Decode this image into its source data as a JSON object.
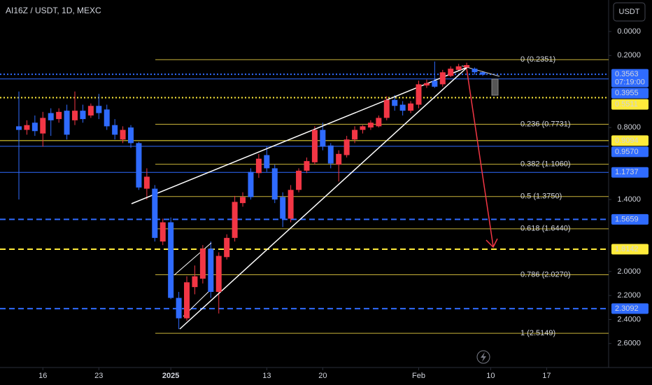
{
  "chart_data": {
    "type": "candlestick",
    "title": "AI16Z / USDT, 1D, MEXC",
    "currency": "USDT",
    "inverted": true,
    "ylim": [
      -0.2624,
      2.8
    ],
    "yticks": [
      {
        "value": 0,
        "label": "0.0000"
      },
      {
        "value": 0.2,
        "label": "0.2000"
      },
      {
        "value": 0.8,
        "label": "0.8000"
      },
      {
        "value": 1.4,
        "label": "1.4000"
      },
      {
        "value": 2.0,
        "label": "2.0000"
      },
      {
        "value": 2.2,
        "label": "2.2000"
      },
      {
        "value": 2.4,
        "label": "2.4000"
      },
      {
        "value": 2.6,
        "label": "2.6000"
      }
    ],
    "xticks": [
      {
        "value": 3,
        "label": "16"
      },
      {
        "value": 10,
        "label": "23"
      },
      {
        "value": 19,
        "label": "2025"
      },
      {
        "value": 31,
        "label": "13"
      },
      {
        "value": 38,
        "label": "20"
      },
      {
        "value": 50,
        "label": "Feb"
      },
      {
        "value": 59,
        "label": "10"
      },
      {
        "value": 66,
        "label": "17"
      }
    ],
    "up_color": "#2f6bff",
    "down_color": "#f23645",
    "candles": {
      "open": [
        0.79,
        0.82,
        0.76,
        0.85,
        0.68,
        0.73,
        0.66,
        0.74,
        0.66,
        0.7,
        0.62,
        0.65,
        0.78,
        0.9,
        0.8,
        0.93,
        1.31,
        1.31,
        1.75,
        1.59,
        2.22,
        2.39,
        2.13,
        2.06,
        1.81,
        2.17,
        1.88,
        1.72,
        1.43,
        1.17,
        1.18,
        1.03,
        1.14,
        1.38,
        1.56,
        1.32,
        1.16,
        1.09,
        0.82,
        0.95,
        1.11,
        1.03,
        0.9,
        0.82,
        0.8,
        0.79,
        0.72,
        0.57,
        0.61,
        0.66,
        0.61,
        0.45,
        0.41,
        0.44,
        0.37,
        0.32,
        0.3,
        0.31,
        0.34
      ],
      "high": [
        1.4,
        0.86,
        0.87,
        0.96,
        0.87,
        0.76,
        0.9,
        0.78,
        0.76,
        0.72,
        0.73,
        0.82,
        0.9,
        0.93,
        0.97,
        1.32,
        1.4,
        1.75,
        1.78,
        2.23,
        2.48,
        2.41,
        2.19,
        2.1,
        2.22,
        2.35,
        1.9,
        1.75,
        1.46,
        1.4,
        1.22,
        1.17,
        1.43,
        1.63,
        1.59,
        1.34,
        1.18,
        1.11,
        0.99,
        1.14,
        1.25,
        1.05,
        0.93,
        0.85,
        0.82,
        0.8,
        0.74,
        0.66,
        0.7,
        0.68,
        0.64,
        0.47,
        0.47,
        0.46,
        0.38,
        0.33,
        0.32,
        0.36,
        0.37
      ],
      "low": [
        0.5,
        0.74,
        0.7,
        0.67,
        0.64,
        0.64,
        0.61,
        0.5,
        0.61,
        0.6,
        0.52,
        0.61,
        0.73,
        0.79,
        0.78,
        0.92,
        1.14,
        1.28,
        1.56,
        1.55,
        2.17,
        2.04,
        1.95,
        1.78,
        1.75,
        1.84,
        1.69,
        1.37,
        1.34,
        1.14,
        1.02,
        0.96,
        1.11,
        1.34,
        1.28,
        1.14,
        1.05,
        0.79,
        0.76,
        0.93,
        0.99,
        0.87,
        0.79,
        0.78,
        0.74,
        0.7,
        0.54,
        0.53,
        0.58,
        0.58,
        0.41,
        0.4,
        0.25,
        0.32,
        0.29,
        0.27,
        0.26,
        0.3,
        0.33
      ],
      "close": [
        0.82,
        0.78,
        0.83,
        0.72,
        0.74,
        0.67,
        0.86,
        0.66,
        0.73,
        0.62,
        0.68,
        0.79,
        0.86,
        0.82,
        0.93,
        1.3,
        1.21,
        1.72,
        1.59,
        2.22,
        2.39,
        2.09,
        2.04,
        1.81,
        2.17,
        1.87,
        1.72,
        1.42,
        1.38,
        1.38,
        1.06,
        1.14,
        1.4,
        1.56,
        1.32,
        1.16,
        1.08,
        0.82,
        0.96,
        1.1,
        1.02,
        0.9,
        0.82,
        0.79,
        0.76,
        0.72,
        0.57,
        0.62,
        0.66,
        0.6,
        0.44,
        0.43,
        0.46,
        0.34,
        0.31,
        0.29,
        0.28,
        0.34,
        0.36
      ]
    },
    "fib_color": "#c8b33a",
    "fib_levels": [
      {
        "value": 0.2351,
        "label": "0 (0.2351)"
      },
      {
        "value": 0.7731,
        "label": "0.236 (0.7731)"
      },
      {
        "value": 1.106,
        "label": "0.382 (1.1060)"
      },
      {
        "value": 1.375,
        "label": "0.5 (1.3750)"
      },
      {
        "value": 1.644,
        "label": "0.618 (1.6440)"
      },
      {
        "value": 2.027,
        "label": "0.786 (2.0270)"
      },
      {
        "value": 2.5149,
        "label": "1 (2.5149)"
      }
    ],
    "price_lines": [
      {
        "value": 0.3563,
        "label": "0.3563",
        "countdown": "07:19:00",
        "color": "#2f6bff",
        "style": "dotted"
      },
      {
        "value": 0.3955,
        "label": "0.3955",
        "color": "#2f6bff",
        "style": "solid"
      },
      {
        "value": 0.5511,
        "label": "0.5511",
        "color": "#ffeb3b",
        "style": "dotted"
      },
      {
        "value": 0.9094,
        "label": "0.9094",
        "color": "#ffeb3b",
        "style": "solid"
      },
      {
        "value": 0.957,
        "label": "0.9570",
        "color": "#2f6bff",
        "style": "solid"
      },
      {
        "value": 1.1737,
        "label": "1.1737",
        "color": "#2f6bff",
        "style": "solid"
      },
      {
        "value": 1.5659,
        "label": "1.5659",
        "color": "#2f6bff",
        "style": "dashed"
      },
      {
        "value": 1.8142,
        "label": "1.8142",
        "color": "#ffeb3b",
        "style": "dashed"
      },
      {
        "value": 2.3092,
        "label": "2.3092",
        "color": "#2f6bff",
        "style": "dashed"
      }
    ]
  }
}
